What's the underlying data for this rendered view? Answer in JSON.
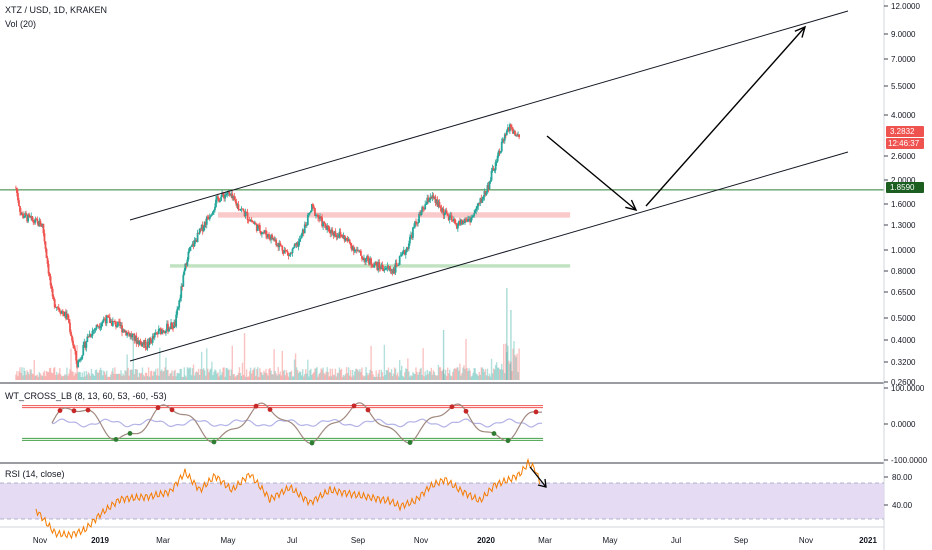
{
  "header": {
    "symbol_line": "XTZ / USD, 1D, KRAKEN",
    "volume_label": "Vol (20)"
  },
  "indicators": {
    "wt_label": "WT_CROSS_LB (8, 13, 60, 53, -60, -53)",
    "rsi_label": "RSI (14, close)"
  },
  "price_tags": {
    "last_price": "3.2832",
    "countdown": "12:46:37",
    "level_price": "1.8590"
  },
  "colors": {
    "up": "#26a69a",
    "down": "#ef5350",
    "level_line": "#2e7d32",
    "level_tag": "#1b5e20",
    "resistance_zone": "#f8b4b4",
    "support_zone": "#a5d6a7",
    "rsi_band": "#e1d5f0",
    "rsi_line": "#f57c00",
    "wt_line": "#a1887f",
    "wt_signal": "#7e7ed6",
    "price_tag": "#ef5350"
  },
  "chart_data": [
    {
      "type": "candlestick",
      "title": "XTZ / USD, 1D, KRAKEN",
      "scale": "log",
      "y_ticks": [
        "12.0000",
        "9.0000",
        "7.0000",
        "5.5000",
        "4.0000",
        "2.6000",
        "2.0000",
        "1.6000",
        "1.3000",
        "1.0000",
        "0.8000",
        "0.6500",
        "0.5000",
        "0.4000",
        "0.3200",
        "0.2600"
      ],
      "x_ticks": [
        "Nov",
        "2019",
        "Mar",
        "May",
        "Jul",
        "Sep",
        "Nov",
        "2020",
        "Mar",
        "May",
        "Jul",
        "Sep",
        "Nov",
        "2021"
      ],
      "last_price": 3.2832,
      "horizontal_level": 1.859,
      "price_path": [
        [
          "2018-10-15",
          1.9
        ],
        [
          "2018-10-20",
          1.45
        ],
        [
          "2018-11-01",
          1.35
        ],
        [
          "2018-11-10",
          1.3
        ],
        [
          "2018-11-20",
          0.6
        ],
        [
          "2018-12-05",
          0.5
        ],
        [
          "2018-12-14",
          0.31
        ],
        [
          "2018-12-25",
          0.42
        ],
        [
          "2019-01-10",
          0.5
        ],
        [
          "2019-01-25",
          0.46
        ],
        [
          "2019-02-10",
          0.4
        ],
        [
          "2019-02-20",
          0.38
        ],
        [
          "2019-03-05",
          0.44
        ],
        [
          "2019-03-20",
          0.47
        ],
        [
          "2019-04-01",
          0.95
        ],
        [
          "2019-04-15",
          1.25
        ],
        [
          "2019-05-01",
          1.7
        ],
        [
          "2019-05-10",
          1.8
        ],
        [
          "2019-05-25",
          1.5
        ],
        [
          "2019-06-10",
          1.25
        ],
        [
          "2019-06-25",
          1.12
        ],
        [
          "2019-07-10",
          0.95
        ],
        [
          "2019-07-20",
          1.1
        ],
        [
          "2019-08-01",
          1.55
        ],
        [
          "2019-08-15",
          1.25
        ],
        [
          "2019-09-01",
          1.15
        ],
        [
          "2019-09-20",
          0.93
        ],
        [
          "2019-10-05",
          0.85
        ],
        [
          "2019-10-20",
          0.82
        ],
        [
          "2019-11-01",
          1.0
        ],
        [
          "2019-11-10",
          1.3
        ],
        [
          "2019-11-25",
          1.75
        ],
        [
          "2019-12-10",
          1.45
        ],
        [
          "2019-12-20",
          1.3
        ],
        [
          "2020-01-05",
          1.4
        ],
        [
          "2020-01-20",
          1.9
        ],
        [
          "2020-02-01",
          2.8
        ],
        [
          "2020-02-10",
          3.5
        ],
        [
          "2020-02-20",
          3.28
        ]
      ],
      "annotations": {
        "channel_upper": [
          [
            "2018-12-20",
            1.45
          ],
          [
            "2020-12-01",
            11.8
          ]
        ],
        "channel_lower": [
          [
            "2018-12-20",
            0.335
          ],
          [
            "2020-12-01",
            2.6
          ]
        ],
        "resistance_zone": {
          "from": "2019-05-01",
          "to": "2020-04-10",
          "low": 1.4,
          "high": 1.48
        },
        "support_zone": {
          "from": "2019-03-15",
          "to": "2020-04-10",
          "low": 0.84,
          "high": 0.87
        },
        "projection_arrows": [
          [
            [
              "2020-02-28",
              2.9
            ],
            [
              "2020-04-28",
              1.5
            ]
          ],
          [
            [
              "2020-05-05",
              1.55
            ],
            [
              "2020-11-01",
              9.6
            ]
          ]
        ]
      }
    },
    {
      "type": "line",
      "title": "WT_CROSS_LB (8, 13, 60, 53, -60, -53)",
      "y_ticks": [
        "100.0000",
        "0.0000",
        "-100.0000"
      ],
      "levels": [
        60,
        53,
        -53,
        -60
      ]
    },
    {
      "type": "line",
      "title": "RSI (14, close)",
      "y_ticks": [
        "80.00",
        "40.00"
      ],
      "band": [
        30,
        70
      ],
      "approximate_range": [
        10,
        90
      ]
    }
  ]
}
